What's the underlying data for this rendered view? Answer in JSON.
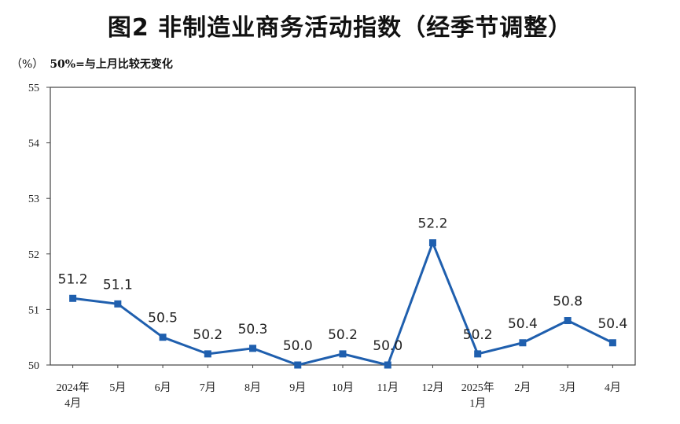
{
  "header": {
    "title": "图2  非制造业商务活动指数（经季节调整）",
    "unit": "（%）",
    "note": "50%=与上月比较无变化"
  },
  "chart_data": {
    "type": "line",
    "title": "图2  非制造业商务活动指数（经季节调整）",
    "xlabel": "",
    "ylabel": "（%）",
    "ylim": [
      50,
      55
    ],
    "yticks": [
      50,
      51,
      52,
      53,
      54,
      55
    ],
    "grid": false,
    "categories": [
      [
        "2024年",
        "4月"
      ],
      [
        "5月"
      ],
      [
        "6月"
      ],
      [
        "7月"
      ],
      [
        "8月"
      ],
      [
        "9月"
      ],
      [
        "10月"
      ],
      [
        "11月"
      ],
      [
        "12月"
      ],
      [
        "2025年",
        "1月"
      ],
      [
        "2月"
      ],
      [
        "3月"
      ],
      [
        "4月"
      ]
    ],
    "series": [
      {
        "name": "",
        "color": "#1f5fae",
        "values": [
          51.2,
          51.1,
          50.5,
          50.2,
          50.3,
          50.0,
          50.2,
          50.0,
          52.2,
          50.2,
          50.4,
          50.8,
          50.4
        ],
        "labels": [
          "51.2",
          "51.1",
          "50.5",
          "50.2",
          "50.3",
          "50.0",
          "50.2",
          "50.0",
          "52.2",
          "50.2",
          "50.4",
          "50.8",
          "50.4"
        ]
      }
    ]
  }
}
